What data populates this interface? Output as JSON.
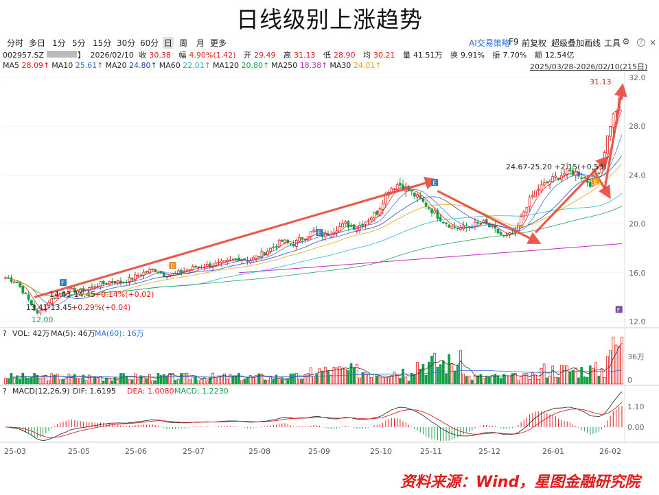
{
  "title": "日线级别上涨趋势",
  "toolbar": {
    "timeframes": [
      "分时",
      "多日",
      "1分",
      "5分",
      "15分",
      "30分",
      "60分",
      "日",
      "周",
      "月",
      "更多"
    ],
    "active": "日",
    "right_items": [
      "AI交易策略",
      "F9",
      "前复权",
      "超级叠加",
      "画线",
      "工具"
    ],
    "gear_icon": "gear-icon",
    "help_icon": "?",
    "close_icon": "×"
  },
  "quote": {
    "code": "002957.SZ",
    "date": "2026/02/10",
    "close_label": "收",
    "close": "30.38",
    "change_label": "幅",
    "change": "4.90%(1.42)",
    "open_label": "开",
    "open": "29.49",
    "high_label": "高",
    "high": "31.13",
    "low_label": "低",
    "low": "28.90",
    "avg_label": "均",
    "avg": "30.21",
    "vol_label": "量",
    "vol": "41.51万",
    "turnover_label": "换",
    "turnover": "9.91%",
    "amplitude_label": "振",
    "amplitude": "7.70%",
    "amount_label": "额",
    "amount": "12.54亿"
  },
  "ma_bar": [
    {
      "label": "MA5",
      "value": "28.09↑",
      "color": "#e21b1b"
    },
    {
      "label": "MA10",
      "value": "25.61↑",
      "color": "#2f6fd6"
    },
    {
      "label": "MA20",
      "value": "24.80↑",
      "color": "#1f3fb5"
    },
    {
      "label": "MA60",
      "value": "22.01↑",
      "color": "#19b5c8"
    },
    {
      "label": "MA120",
      "value": "20.80↑",
      "color": "#13a047"
    },
    {
      "label": "MA250",
      "value": "18.38↑",
      "color": "#c02ac0"
    },
    {
      "label": "MA30",
      "value": "24.01↑",
      "color": "#e3a400"
    }
  ],
  "date_range": "2025/03/28-2026/02/10(215日)",
  "chart_data": {
    "type": "candlestick",
    "price_axis": {
      "ticks": [
        12.0,
        16.0,
        20.0,
        24.0,
        28.0,
        32.0
      ],
      "tick_labels": [
        "12.0",
        "16.0",
        "20.0",
        "24.0",
        "28.0",
        "32.0"
      ],
      "range": [
        11.5,
        32.5
      ]
    },
    "x_ticks": [
      "25-03",
      "25-05",
      "25-06",
      "25-07",
      "25-08",
      "25-09",
      "25-10",
      "25-11",
      "25-12",
      "26-01",
      "26-02"
    ],
    "anchor_prices": [
      15.6,
      15.3,
      14.0,
      12.6,
      13.6,
      14.3,
      14.6,
      14.5,
      14.8,
      15.1,
      15.3,
      15.2,
      15.6,
      16.0,
      16.3,
      15.8,
      15.9,
      16.2,
      16.5,
      16.6,
      16.7,
      16.9,
      17.2,
      17.0,
      17.5,
      18.0,
      18.6,
      18.3,
      18.9,
      19.4,
      19.0,
      19.6,
      20.0,
      19.7,
      20.3,
      21.0,
      22.8,
      23.3,
      22.7,
      22.0,
      21.2,
      20.4,
      19.8,
      19.6,
      19.9,
      20.1,
      19.5,
      18.9,
      19.3,
      21.5,
      22.8,
      23.4,
      23.9,
      24.3,
      24.1,
      23.3,
      24.6,
      28.5,
      30.38
    ],
    "annotations": [
      {
        "text": "31.13",
        "color": "#e21b1b"
      },
      {
        "text": "24.67-25.20  +2.15(+0.53)",
        "color": "#222"
      },
      {
        "text": "14.43-14.45",
        "color": "#222",
        "change": "+0.14%(+0.02)"
      },
      {
        "text": "13.41-13.45",
        "color": "#222",
        "change": "+0.29%(+0.04)"
      },
      {
        "text": "12.00",
        "color": "#13a047"
      }
    ],
    "markers": [
      {
        "letter": "F",
        "color": "#2f7fc1"
      },
      {
        "letter": "D",
        "color": "#e58b1a"
      },
      {
        "letter": "E",
        "color": "#2f7fc1"
      },
      {
        "letter": "E",
        "color": "#2f7fc1"
      },
      {
        "letter": "E",
        "color": "#e3a400"
      },
      {
        "letter": "F",
        "color": "#7a4fa0"
      }
    ],
    "volume": {
      "header": "VOL: 42万  MA(5): 46万  MA(60): 16万",
      "vol_label": "VOL: 42万",
      "ma5_label": "MA(5): 46万",
      "ma60_label": "MA(60): 16万",
      "ticks": [
        "36万",
        "0"
      ]
    },
    "macd": {
      "name": "MACD(12,26,9)",
      "dif_label": "DIF: 1.6195",
      "dea_label": "DEA: 1.0080",
      "macd_label": "MACD: 1.2230",
      "ticks": [
        "1.10",
        "0.00"
      ]
    }
  },
  "footer": "资料来源：Wind，星图金融研究院"
}
